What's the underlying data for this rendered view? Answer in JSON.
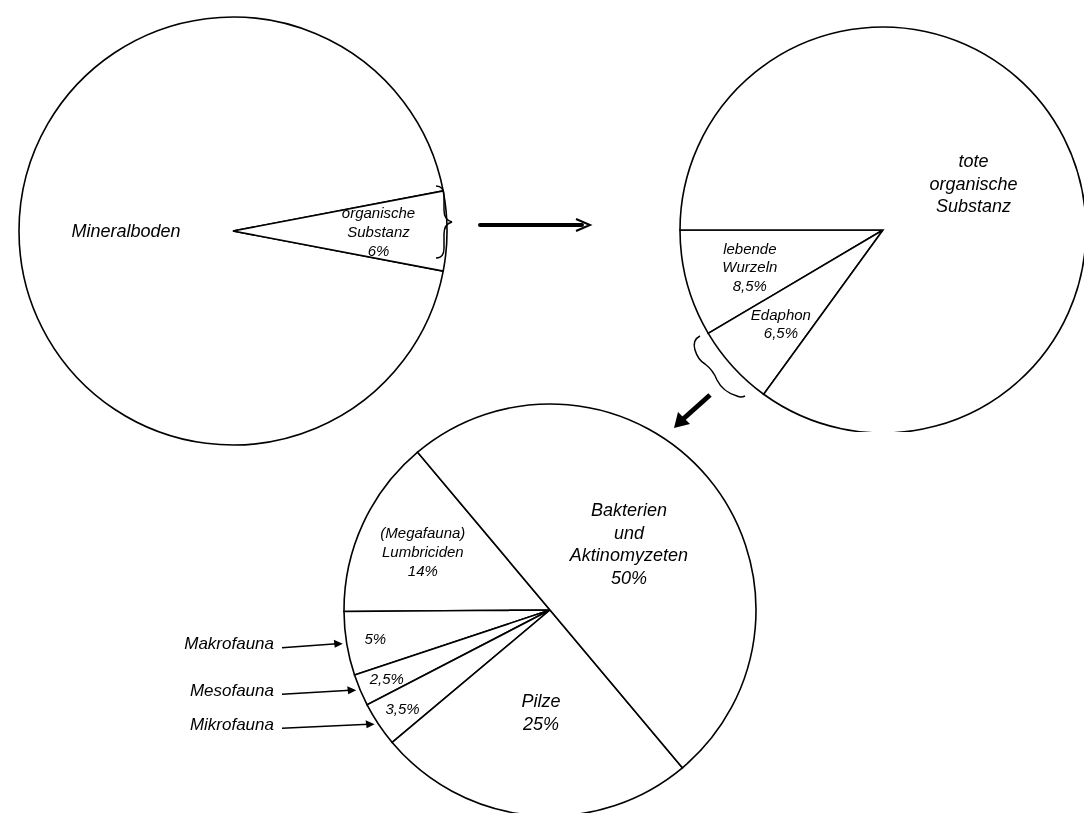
{
  "chart_data": [
    {
      "type": "pie",
      "categories": [
        "Mineralboden",
        "organische Substanz"
      ],
      "values": [
        94,
        6
      ],
      "value_labels": [
        null,
        "6%"
      ],
      "colors": [
        "#ffffff",
        "#ffffff"
      ]
    },
    {
      "type": "pie",
      "categories": [
        "lebende Wurzeln",
        "Edaphon",
        "tote organische Substanz"
      ],
      "values": [
        8.5,
        6.5,
        85
      ],
      "value_labels": [
        "8,5%",
        "6,5%",
        null
      ],
      "colors": [
        "#ffffff",
        "#ffffff",
        "#ffffff"
      ]
    },
    {
      "type": "pie",
      "categories": [
        "(Megafauna) Lumbriciden",
        "Makrofauna",
        "Mesofauna",
        "Mikrofauna",
        "Pilze",
        "Bakterien und Aktinomyzeten"
      ],
      "values": [
        14,
        5,
        2.5,
        3.5,
        25,
        50
      ],
      "value_labels": [
        "14%",
        "5%",
        "2,5%",
        "3,5%",
        "25%",
        "50%"
      ],
      "colors": [
        "#ffffff",
        "#ffffff",
        "#ffffff",
        "#ffffff",
        "#ffffff",
        "#ffffff"
      ]
    }
  ]
}
